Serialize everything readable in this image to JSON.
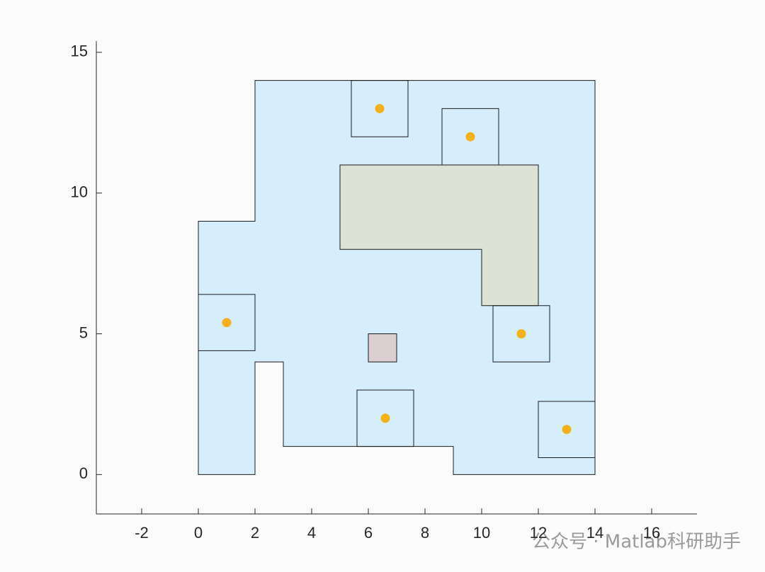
{
  "chart_data": {
    "type": "polygon",
    "xlim": [
      -3.6,
      17.6
    ],
    "ylim": [
      -1.4,
      15.4
    ],
    "xticks": [
      -2,
      0,
      2,
      4,
      6,
      8,
      10,
      12,
      14,
      16
    ],
    "yticks": [
      0,
      5,
      10,
      15
    ],
    "polygons": [
      {
        "color": "#d6edfc",
        "x": [
          0,
          2,
          2,
          3,
          3,
          9,
          9,
          14,
          14,
          2,
          2,
          0
        ],
        "y": [
          0,
          0,
          4,
          4,
          1,
          1,
          0,
          0,
          14,
          14,
          9,
          9
        ]
      },
      {
        "color": "#dce3d4",
        "x": [
          5,
          12,
          12,
          10,
          10,
          5
        ],
        "y": [
          11,
          11,
          6,
          6,
          8,
          8
        ]
      },
      {
        "color": "#dccfd1",
        "x": [
          6,
          7,
          7,
          6
        ],
        "y": [
          4,
          4,
          5,
          5
        ]
      },
      {
        "x": [
          5.4,
          7.4,
          7.4,
          5.4
        ],
        "y": [
          12,
          12,
          14,
          14
        ]
      },
      {
        "x": [
          8.6,
          10.6,
          10.6,
          8.6
        ],
        "y": [
          11,
          11,
          13,
          13
        ]
      },
      {
        "x": [
          0,
          2,
          2,
          0
        ],
        "y": [
          4.4,
          4.4,
          6.4,
          6.4
        ]
      },
      {
        "x": [
          10.4,
          12.4,
          12.4,
          10.4
        ],
        "y": [
          4,
          4,
          6,
          6
        ]
      },
      {
        "x": [
          5.6,
          7.6,
          7.6,
          5.6
        ],
        "y": [
          1,
          1,
          3,
          3
        ]
      },
      {
        "x": [
          12,
          14,
          14,
          12
        ],
        "y": [
          0.6,
          0.6,
          2.6,
          2.6
        ]
      }
    ],
    "points": {
      "color": "#f5b11a",
      "x": [
        6.4,
        9.6,
        1,
        11.4,
        6.6,
        13
      ],
      "y": [
        13,
        12,
        5.4,
        5,
        2,
        1.6
      ]
    },
    "watermark": "公众号 · Matlab科研助手"
  }
}
